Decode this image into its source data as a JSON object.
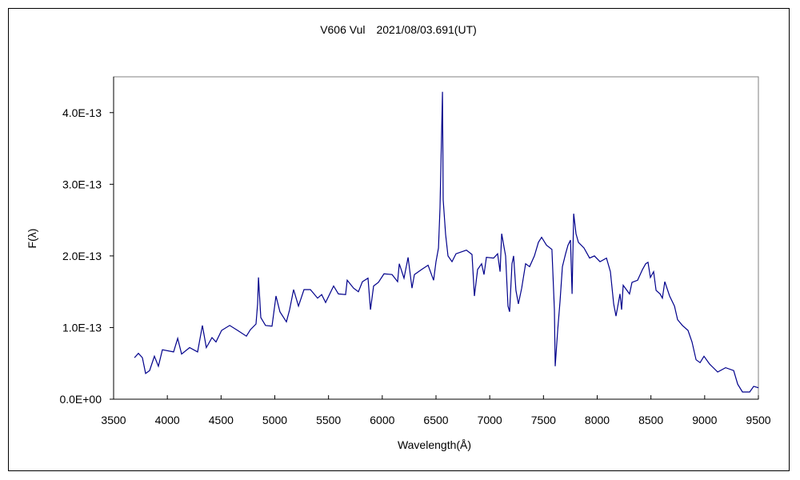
{
  "chart_data": {
    "type": "line",
    "title": "V606 Vul　2021/08/03.691(UT)",
    "xlabel": "Wavelength(Å)",
    "ylabel": "F(λ)",
    "xlim": [
      3500,
      9500
    ],
    "ylim": [
      0,
      4.5e-13
    ],
    "grid": false,
    "legend": "none",
    "x_ticks": [
      3500,
      4000,
      4500,
      5000,
      5500,
      6000,
      6500,
      7000,
      7500,
      8000,
      8500,
      9000,
      9500
    ],
    "x_tick_labels": [
      "3500",
      "4000",
      "4500",
      "5000",
      "5500",
      "6000",
      "6500",
      "7000",
      "7500",
      "8000",
      "8500",
      "9000",
      "9500"
    ],
    "y_ticks": [
      0,
      1e-13,
      2e-13,
      3e-13,
      4e-13
    ],
    "y_tick_labels": [
      "0.0E+00",
      "1.0E-13",
      "2.0E-13",
      "3.0E-13",
      "4.0E-13"
    ],
    "line_color": "#00008b",
    "series": [
      {
        "x": [
          3694,
          3731,
          3768,
          3798,
          3835,
          3880,
          3917,
          3954,
          4058,
          4096,
          4133,
          4207,
          4282,
          4326,
          4363,
          4416,
          4453,
          4505,
          4580,
          4654,
          4736,
          4773,
          4825,
          4840,
          4848,
          4870,
          4914,
          4974,
          5011,
          5048,
          5108,
          5138,
          5175,
          5220,
          5272,
          5331,
          5398,
          5436,
          5473,
          5547,
          5592,
          5659,
          5674,
          5733,
          5778,
          5815,
          5867,
          5890,
          5919,
          5964,
          6016,
          6091,
          6143,
          6158,
          6202,
          6240,
          6277,
          6299,
          6366,
          6426,
          6478,
          6500,
          6523,
          6537,
          6560,
          6567,
          6589,
          6612,
          6649,
          6686,
          6783,
          6835,
          6857,
          6887,
          6924,
          6947,
          6969,
          7036,
          7073,
          7096,
          7111,
          7148,
          7170,
          7185,
          7207,
          7222,
          7244,
          7267,
          7297,
          7334,
          7371,
          7416,
          7453,
          7483,
          7528,
          7579,
          7602,
          7609,
          7632,
          7654,
          7676,
          7706,
          7728,
          7751,
          7766,
          7781,
          7803,
          7825,
          7877,
          7929,
          7974,
          8026,
          8086,
          8123,
          8153,
          8175,
          8212,
          8227,
          8242,
          8301,
          8324,
          8376,
          8421,
          8451,
          8473,
          8495,
          8525,
          8548,
          8585,
          8607,
          8629,
          8674,
          8719,
          8748,
          8793,
          8845,
          8882,
          8920,
          8957,
          8994,
          9046,
          9121,
          9195,
          9270,
          9307,
          9352,
          9419,
          9456,
          9500
        ],
        "y": [
          5.8e-14,
          6.4e-14,
          5.8e-14,
          3.6e-14,
          4e-14,
          6e-14,
          4.6e-14,
          6.9e-14,
          6.6e-14,
          8.5e-14,
          6.3e-14,
          7.2e-14,
          6.6e-14,
          1.03e-13,
          7.2e-14,
          8.6e-14,
          8e-14,
          9.6e-14,
          1.03e-13,
          9.6e-14,
          8.8e-14,
          9.7e-14,
          1.05e-13,
          1.33e-13,
          1.7e-13,
          1.14e-13,
          1.03e-13,
          1.02e-13,
          1.44e-13,
          1.22e-13,
          1.08e-13,
          1.25e-13,
          1.53e-13,
          1.3e-13,
          1.53e-13,
          1.53e-13,
          1.41e-13,
          1.46e-13,
          1.35e-13,
          1.58e-13,
          1.47e-13,
          1.46e-13,
          1.66e-13,
          1.55e-13,
          1.5e-13,
          1.64e-13,
          1.69e-13,
          1.25e-13,
          1.58e-13,
          1.63e-13,
          1.75e-13,
          1.74e-13,
          1.64e-13,
          1.89e-13,
          1.69e-13,
          1.98e-13,
          1.55e-13,
          1.74e-13,
          1.81e-13,
          1.87e-13,
          1.66e-13,
          1.92e-13,
          2.11e-13,
          2.67e-13,
          4.29e-13,
          2.78e-13,
          2.3e-13,
          2e-13,
          1.92e-13,
          2.03e-13,
          2.08e-13,
          2.02e-13,
          1.44e-13,
          1.81e-13,
          1.89e-13,
          1.74e-13,
          1.98e-13,
          1.97e-13,
          2.03e-13,
          1.78e-13,
          2.31e-13,
          2e-13,
          1.3e-13,
          1.22e-13,
          1.89e-13,
          2e-13,
          1.52e-13,
          1.33e-13,
          1.55e-13,
          1.89e-13,
          1.85e-13,
          2e-13,
          2.19e-13,
          2.26e-13,
          2.15e-13,
          2.09e-13,
          1.25e-13,
          4.6e-14,
          9.6e-14,
          1.36e-13,
          1.85e-13,
          2.03e-13,
          2.15e-13,
          2.22e-13,
          1.47e-13,
          2.59e-13,
          2.31e-13,
          2.19e-13,
          2.11e-13,
          1.97e-13,
          2e-13,
          1.92e-13,
          1.97e-13,
          1.78e-13,
          1.33e-13,
          1.16e-13,
          1.47e-13,
          1.25e-13,
          1.59e-13,
          1.47e-13,
          1.63e-13,
          1.66e-13,
          1.81e-13,
          1.89e-13,
          1.91e-13,
          1.7e-13,
          1.78e-13,
          1.52e-13,
          1.47e-13,
          1.41e-13,
          1.64e-13,
          1.44e-13,
          1.3e-13,
          1.11e-13,
          1.03e-13,
          9.6e-14,
          8e-14,
          5.5e-14,
          5.1e-14,
          6e-14,
          4.9e-14,
          3.8e-14,
          4.4e-14,
          4e-14,
          2.1e-14,
          1e-14,
          1e-14,
          1.8e-14,
          1.6e-14
        ]
      }
    ]
  }
}
